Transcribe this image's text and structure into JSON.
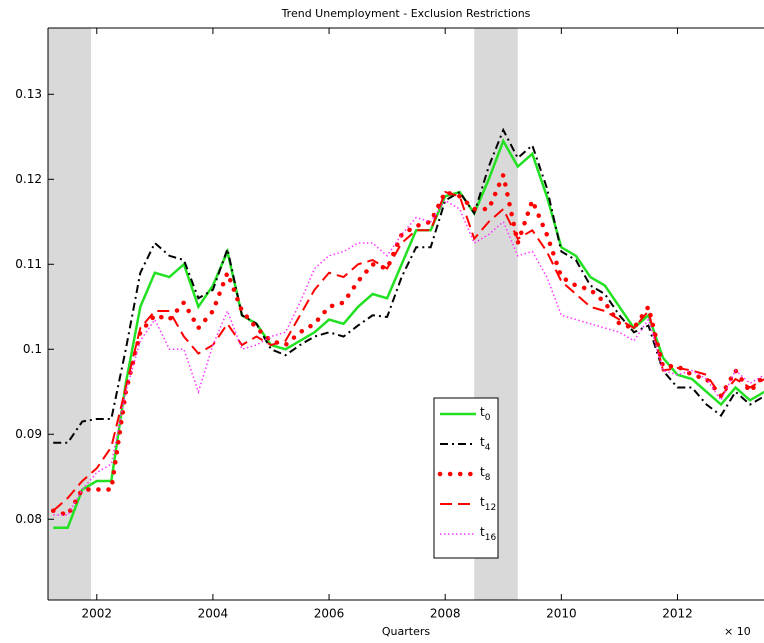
{
  "chart_data": {
    "type": "line",
    "title": "Trend Unemployment - Exclusion Restrictions",
    "x_label": "Quarters",
    "x_multiplier": "× 10",
    "xlim": [
      2001.16,
      2013.49
    ],
    "ylim": [
      0.0705,
      0.1378
    ],
    "xticks": [
      2002,
      2004,
      2006,
      2008,
      2010,
      2012
    ],
    "yticks": [
      0.08,
      0.09,
      0.1,
      0.11,
      0.12,
      0.13
    ],
    "shaded_regions": [
      [
        2001.16,
        2001.9
      ],
      [
        2008.5,
        2009.25
      ]
    ],
    "shade_color": "#d9d9d9",
    "legend": "inside-lower-center",
    "x": [
      2001.25,
      2001.5,
      2001.75,
      2002,
      2002.25,
      2002.5,
      2002.75,
      2003,
      2003.25,
      2003.5,
      2003.75,
      2004,
      2004.25,
      2004.5,
      2004.75,
      2005,
      2005.25,
      2005.5,
      2005.75,
      2006,
      2006.25,
      2006.5,
      2006.75,
      2007,
      2007.25,
      2007.5,
      2007.75,
      2008,
      2008.25,
      2008.5,
      2008.75,
      2009,
      2009.25,
      2009.5,
      2009.75,
      2010,
      2010.25,
      2010.5,
      2010.75,
      2011,
      2011.25,
      2011.5,
      2011.75,
      2012,
      2012.25,
      2012.5,
      2012.75,
      2013,
      2013.25,
      2013.5
    ],
    "series": [
      {
        "name": "t0",
        "color": "#22e022",
        "line_style": "solid",
        "values": [
          0.079,
          0.079,
          0.0835,
          0.0845,
          0.0845,
          0.096,
          0.105,
          0.109,
          0.1085,
          0.11,
          0.105,
          0.1075,
          0.1115,
          0.104,
          0.103,
          0.1005,
          0.1,
          0.101,
          0.102,
          0.1035,
          0.103,
          0.105,
          0.1065,
          0.106,
          0.11,
          0.114,
          0.114,
          0.118,
          0.1185,
          0.116,
          0.12,
          0.1245,
          0.1215,
          0.123,
          0.118,
          0.112,
          0.111,
          0.1085,
          0.1075,
          0.105,
          0.1025,
          0.104,
          0.099,
          0.097,
          0.0965,
          0.095,
          0.0935,
          0.0955,
          0.094,
          0.095
        ]
      },
      {
        "name": "t4",
        "color": "#000000",
        "line_style": "dashdot",
        "values": [
          0.089,
          0.089,
          0.0915,
          0.0918,
          0.0918,
          0.1,
          0.109,
          0.1125,
          0.111,
          0.1105,
          0.106,
          0.107,
          0.1118,
          0.104,
          0.103,
          0.1,
          0.0993,
          0.1005,
          0.1015,
          0.102,
          0.1015,
          0.1028,
          0.104,
          0.1038,
          0.1085,
          0.112,
          0.112,
          0.1175,
          0.1185,
          0.116,
          0.1215,
          0.1258,
          0.1225,
          0.124,
          0.119,
          0.1115,
          0.1105,
          0.1075,
          0.1065,
          0.104,
          0.102,
          0.1028,
          0.0975,
          0.0955,
          0.0955,
          0.0935,
          0.0922,
          0.095,
          0.0935,
          0.0945
        ]
      },
      {
        "name": "t8",
        "color": "#ff0000",
        "line_style": "heavy-dots",
        "values": [
          0.081,
          0.0805,
          0.0835,
          0.0835,
          0.0835,
          0.095,
          0.102,
          0.104,
          0.1035,
          0.1055,
          0.1025,
          0.1045,
          0.109,
          0.1045,
          0.1025,
          0.101,
          0.1005,
          0.102,
          0.103,
          0.105,
          0.1055,
          0.108,
          0.11,
          0.1095,
          0.1135,
          0.1145,
          0.115,
          0.1185,
          0.118,
          0.1165,
          0.1165,
          0.1205,
          0.1125,
          0.1175,
          0.1135,
          0.1085,
          0.1075,
          0.107,
          0.1055,
          0.103,
          0.1025,
          0.105,
          0.098,
          0.098,
          0.097,
          0.0965,
          0.0945,
          0.0975,
          0.095,
          0.097
        ]
      },
      {
        "name": "t12",
        "color": "#ff0000",
        "line_style": "dashed",
        "values": [
          0.081,
          0.0825,
          0.0845,
          0.086,
          0.0885,
          0.0955,
          0.1025,
          0.1045,
          0.1045,
          0.1015,
          0.0995,
          0.1005,
          0.103,
          0.1005,
          0.1015,
          0.1005,
          0.101,
          0.104,
          0.107,
          0.109,
          0.1085,
          0.11,
          0.1105,
          0.1095,
          0.1125,
          0.114,
          0.114,
          0.1185,
          0.118,
          0.113,
          0.115,
          0.1165,
          0.113,
          0.114,
          0.1115,
          0.108,
          0.1065,
          0.105,
          0.1045,
          0.1035,
          0.1025,
          0.1045,
          0.0975,
          0.0978,
          0.0975,
          0.097,
          0.0945,
          0.0965,
          0.0955,
          0.0965
        ]
      },
      {
        "name": "t16",
        "color": "#ff33ff",
        "line_style": "dotted",
        "values": [
          0.0805,
          0.0805,
          0.0835,
          0.0855,
          0.0865,
          0.095,
          0.101,
          0.1035,
          0.1,
          0.1,
          0.095,
          0.1005,
          0.1045,
          0.1,
          0.1005,
          0.1015,
          0.102,
          0.1055,
          0.1095,
          0.111,
          0.1115,
          0.1125,
          0.1125,
          0.111,
          0.1135,
          0.1155,
          0.115,
          0.1175,
          0.1165,
          0.1125,
          0.1135,
          0.115,
          0.111,
          0.1115,
          0.1085,
          0.104,
          0.1035,
          0.103,
          0.1025,
          0.102,
          0.101,
          0.1035,
          0.0975,
          0.097,
          0.0975,
          0.0965,
          0.094,
          0.0975,
          0.096,
          0.097
        ]
      }
    ]
  }
}
